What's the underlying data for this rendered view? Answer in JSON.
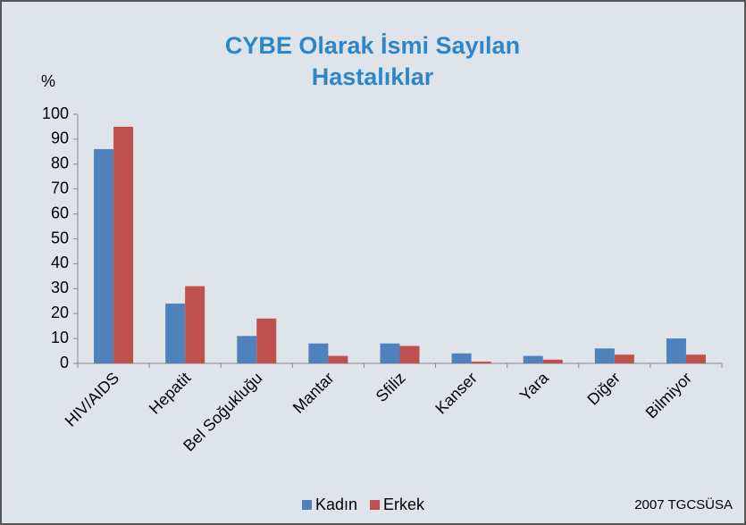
{
  "chart_data": {
    "type": "bar",
    "title": "CYBE Olarak İsmi Sayılan Hastalıklar",
    "y_label": "%",
    "categories": [
      "HIV/AIDS",
      "Hepatit",
      "Bel Soğukluğu",
      "Mantar",
      "Sfiliz",
      "Kanser",
      "Yara",
      "Diğer",
      "Bilmiyor"
    ],
    "series": [
      {
        "name": "Kadın",
        "color": "#4f81bd",
        "values": [
          86,
          24,
          11,
          8,
          8,
          4,
          3,
          6,
          10
        ]
      },
      {
        "name": "Erkek",
        "color": "#c0504d",
        "values": [
          95,
          31,
          18,
          3,
          7,
          0.7,
          1.5,
          3.5,
          3.5
        ]
      }
    ],
    "ylim": [
      0,
      100
    ],
    "yticks": [
      0,
      10,
      20,
      30,
      40,
      50,
      60,
      70,
      80,
      90,
      100
    ],
    "grid": false,
    "legend": "bottom",
    "annotation": "2007 TGCSÜSA"
  }
}
